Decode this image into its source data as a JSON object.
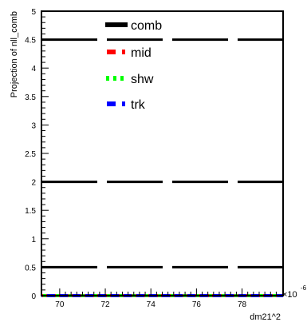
{
  "chart_data": {
    "type": "line",
    "xlabel": "dm21^2",
    "ylabel": "Projection of nll_comb",
    "x_exponent_label": "×10",
    "x_exponent_power": "-6",
    "xlim": [
      69.2,
      79.8
    ],
    "ylim": [
      0,
      5
    ],
    "x_ticks": [
      70,
      72,
      74,
      76,
      78
    ],
    "y_ticks": [
      0,
      0.5,
      1,
      1.5,
      2,
      2.5,
      3,
      3.5,
      4,
      4.5,
      5
    ],
    "x_tick_labels": [
      "70",
      "72",
      "74",
      "76",
      "78"
    ],
    "y_tick_labels": [
      "0",
      "0.5",
      "1",
      "1.5",
      "2",
      "2.5",
      "3",
      "3.5",
      "4",
      "4.5",
      "5"
    ],
    "reference_lines": [
      0.5,
      2,
      4.5
    ],
    "legend_position": "top-center",
    "series": [
      {
        "name": "comb",
        "color": "#000000",
        "style": "dashed",
        "x": [
          69.2,
          79.8
        ],
        "y": [
          0,
          0
        ]
      },
      {
        "name": "mid",
        "color": "#ff0000",
        "style": "dashed",
        "x": [
          69.2,
          79.8
        ],
        "y": [
          0,
          0
        ]
      },
      {
        "name": "shw",
        "color": "#00ff00",
        "style": "dotted",
        "x": [
          69.2,
          79.8
        ],
        "y": [
          0,
          0
        ]
      },
      {
        "name": "trk",
        "color": "#0000ff",
        "style": "dashed",
        "x": [
          69.2,
          79.8
        ],
        "y": [
          0,
          0
        ]
      }
    ]
  }
}
